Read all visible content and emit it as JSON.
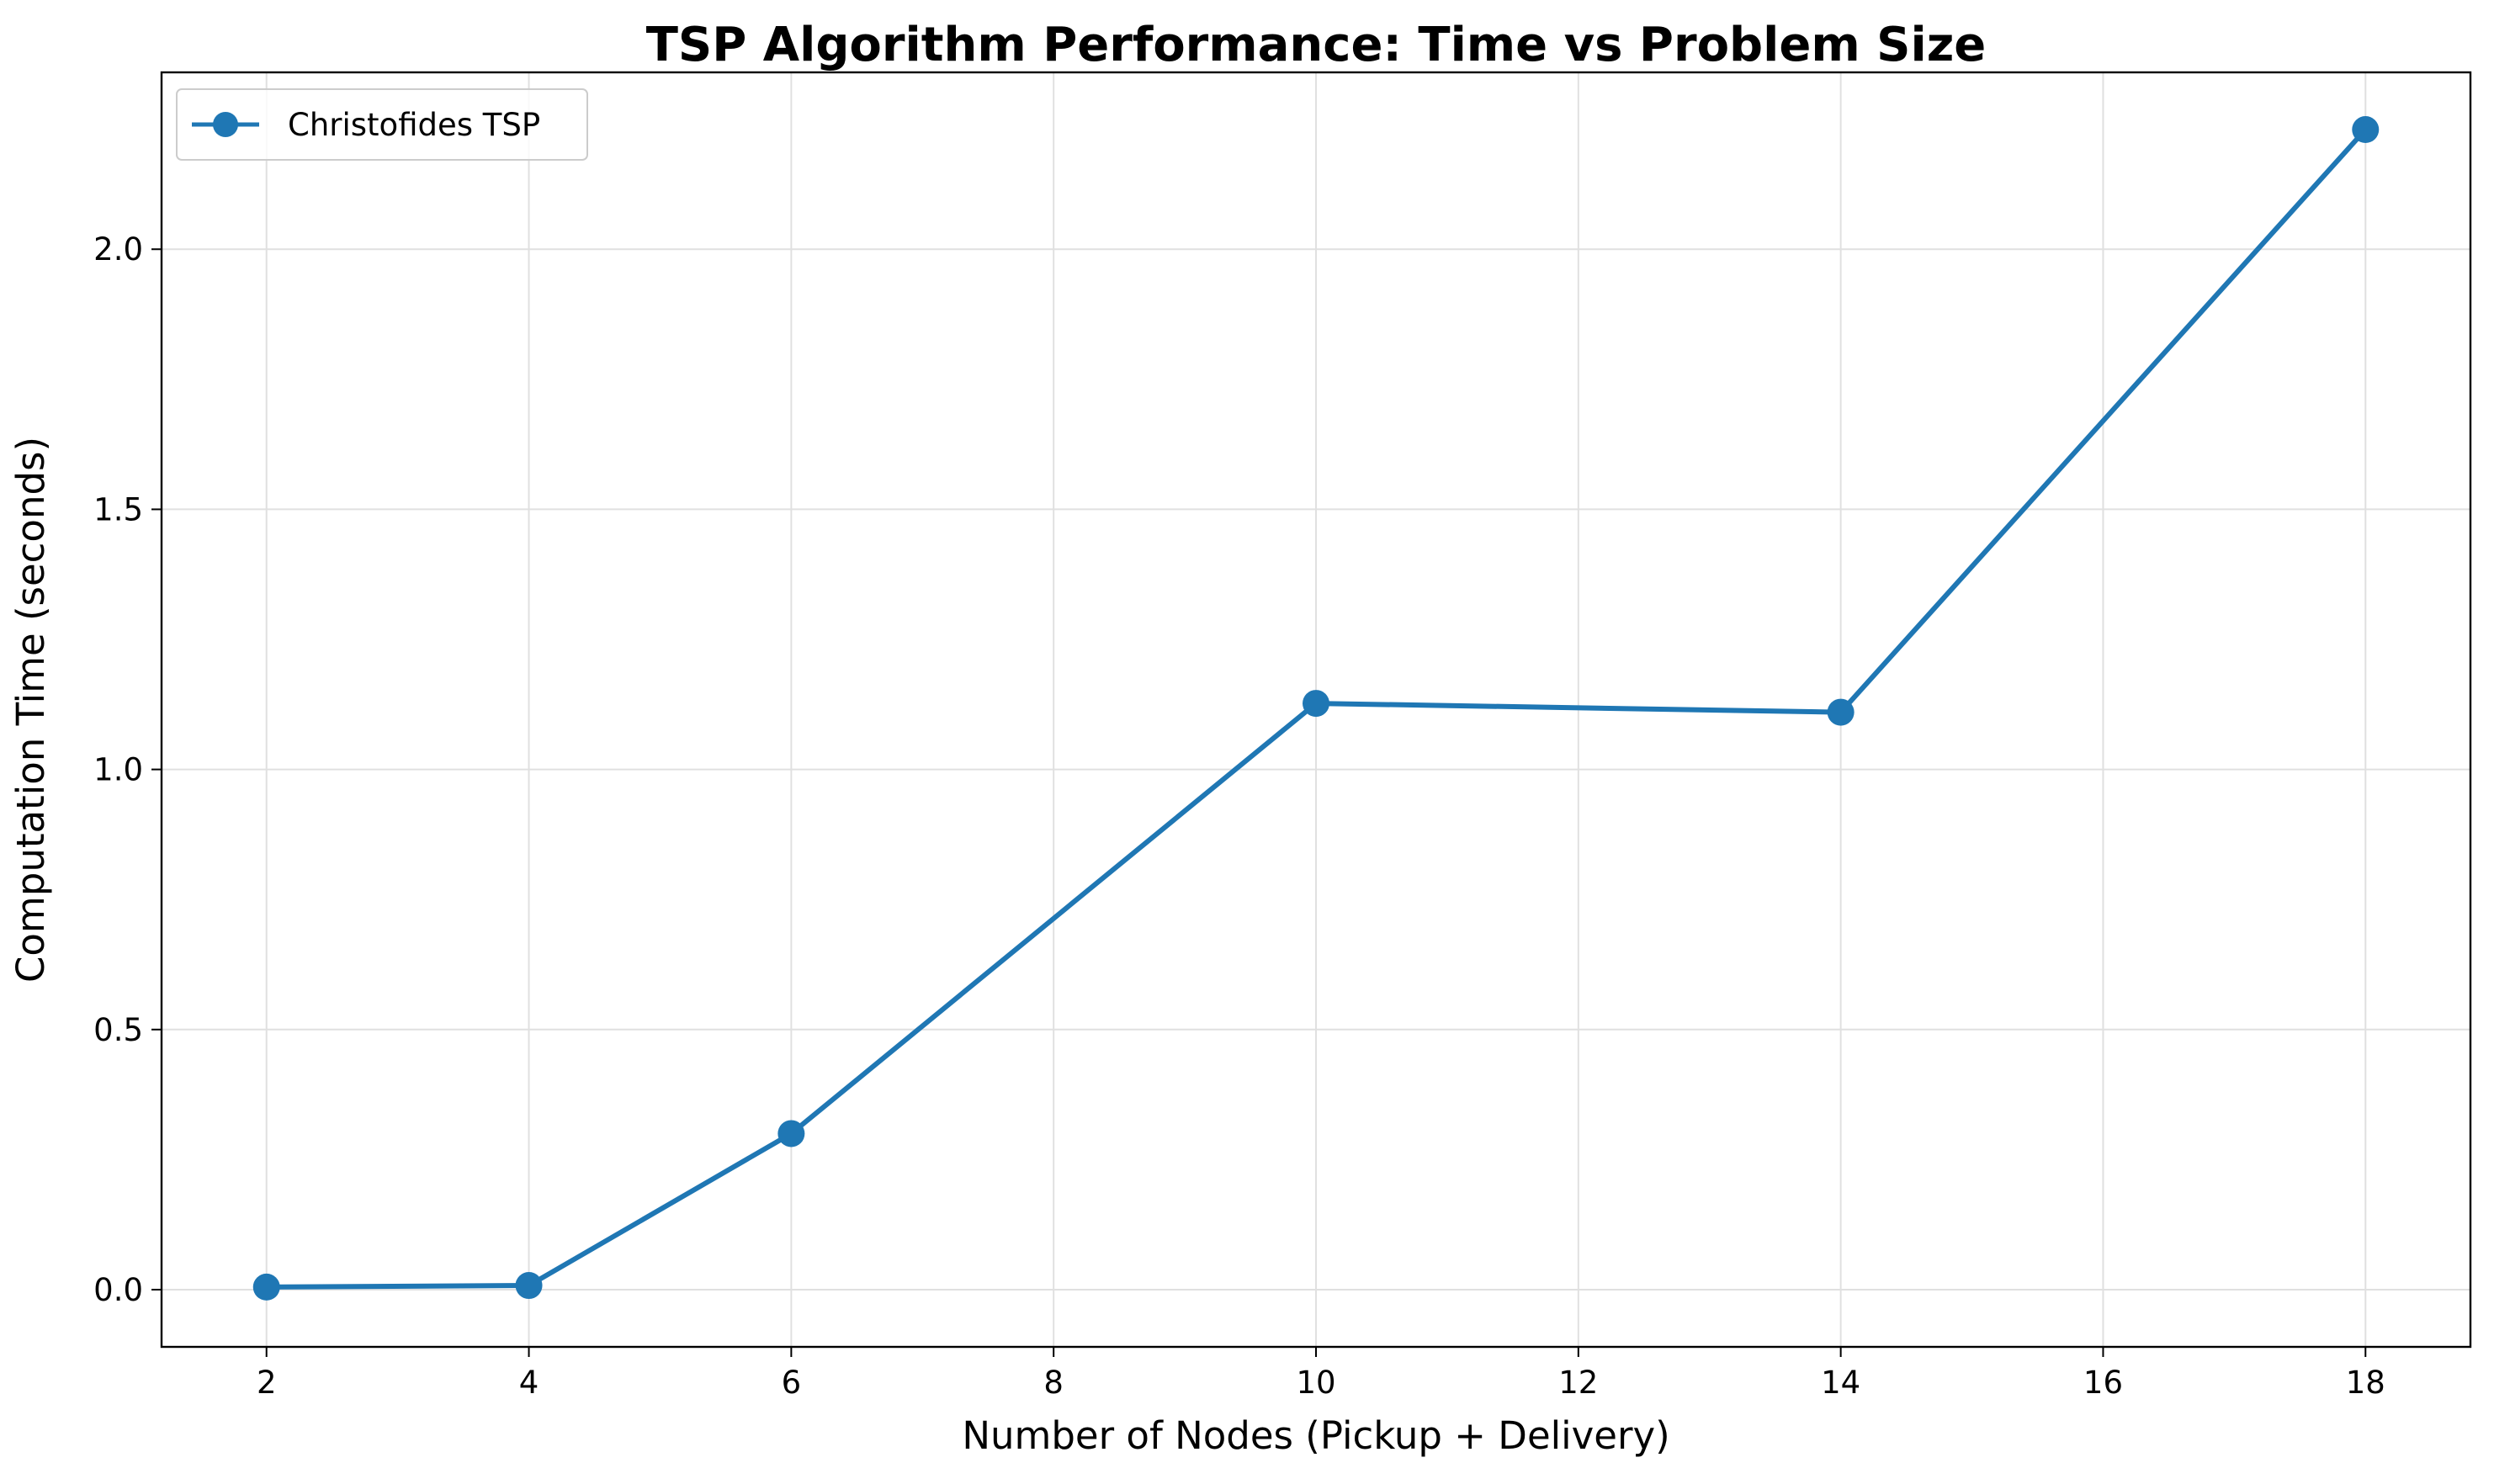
{
  "chart_data": {
    "type": "line",
    "title": "TSP Algorithm Performance: Time vs Problem Size",
    "xlabel": "Number of Nodes (Pickup + Delivery)",
    "ylabel": "Computation Time (seconds)",
    "xlim": [
      1.2,
      18.8
    ],
    "ylim": [
      -0.11,
      2.34
    ],
    "xticks": [
      2,
      4,
      6,
      8,
      10,
      12,
      14,
      16,
      18
    ],
    "xtick_labels": [
      "2",
      "4",
      "6",
      "8",
      "10",
      "12",
      "14",
      "16",
      "18"
    ],
    "yticks": [
      0.0,
      0.5,
      1.0,
      1.5,
      2.0
    ],
    "ytick_labels": [
      "0.0",
      "0.5",
      "1.0",
      "1.5",
      "2.0"
    ],
    "grid": true,
    "legend_position": "top-left",
    "series": [
      {
        "name": "Christofides TSP",
        "color": "#1f77b4",
        "marker": "circle",
        "x": [
          2,
          4,
          6,
          10,
          14,
          18
        ],
        "y": [
          0.005,
          0.008,
          0.3,
          1.127,
          1.11,
          2.23
        ]
      }
    ]
  }
}
